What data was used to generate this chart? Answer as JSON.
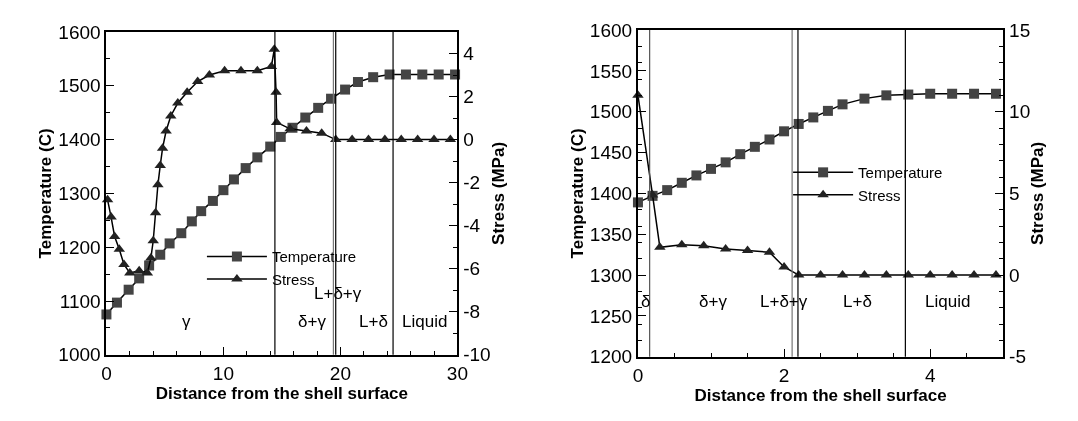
{
  "chart_data": [
    {
      "type": "line",
      "xlabel": "Distance from the shell surface",
      "ylabel": "Temperature (C)",
      "y2label": "Stress (MPa)",
      "xlim": [
        0,
        30
      ],
      "xticks": [
        0,
        10,
        20,
        30
      ],
      "ylim": [
        1000,
        1600
      ],
      "yticks": [
        1000,
        1100,
        1200,
        1300,
        1400,
        1500,
        1600
      ],
      "y2lim": [
        -10,
        5
      ],
      "y2ticks": [
        -10,
        -8,
        -6,
        -4,
        -2,
        0,
        2,
        4
      ],
      "grid": false,
      "legend": "bottom",
      "line_style": "solid",
      "series": [
        {
          "name": "Temperature",
          "color": "#444444",
          "marker": "square",
          "x": [
            0,
            0.9,
            1.9,
            2.8,
            3.65,
            4.6,
            5.4,
            6.4,
            7.3,
            8.1,
            9.1,
            10.0,
            10.9,
            11.9,
            12.9,
            14.0,
            14.9,
            15.9,
            17.0,
            18.1,
            19.2,
            20.4,
            21.5,
            22.8,
            24.2,
            25.6,
            27.0,
            28.4,
            29.8
          ],
          "values": [
            1075,
            1097,
            1121,
            1142,
            1166,
            1186,
            1207,
            1226,
            1248,
            1267,
            1286,
            1306,
            1326,
            1347,
            1367,
            1387,
            1405,
            1422,
            1441,
            1459,
            1476,
            1493,
            1507,
            1516,
            1521,
            1521,
            1521,
            1521,
            1521
          ]
        },
        {
          "name": "Stress",
          "color": "#222222",
          "marker": "triangle",
          "axis": "y2",
          "x": [
            0.1,
            0.4,
            0.7,
            1.1,
            1.5,
            2.0,
            2.8,
            3.5,
            3.8,
            4.0,
            4.2,
            4.4,
            4.6,
            4.8,
            5.1,
            5.5,
            6.1,
            6.9,
            7.8,
            8.8,
            10.1,
            11.5,
            12.9,
            14.1,
            14.35,
            14.5,
            14.55,
            15.7,
            17.1,
            18.4,
            19.6,
            21.0,
            22.4,
            23.8,
            25.2,
            26.6,
            28.0,
            29.4
          ],
          "values": [
            -2.8,
            -3.6,
            -4.5,
            -5.1,
            -5.8,
            -6.2,
            -6.1,
            -6.2,
            -5.5,
            -4.7,
            -3.4,
            -2.1,
            -1.2,
            -0.4,
            0.4,
            1.1,
            1.7,
            2.2,
            2.7,
            3.0,
            3.2,
            3.2,
            3.2,
            3.4,
            4.2,
            2.2,
            0.8,
            0.5,
            0.4,
            0.3,
            0,
            0,
            0,
            0,
            0,
            0,
            0,
            0
          ]
        }
      ],
      "ref_lines": [
        {
          "axis": "x",
          "value": 14.4,
          "color": "#000000"
        },
        {
          "axis": "x",
          "value": 19.4,
          "color": "#777777"
        },
        {
          "axis": "x",
          "value": 19.6,
          "color": "#000000"
        },
        {
          "axis": "x",
          "value": 24.5,
          "color": "#000000"
        }
      ],
      "annotations": [
        "γ",
        "δ+γ",
        "L+δ+γ",
        "L+δ",
        "Liquid"
      ]
    },
    {
      "type": "line",
      "xlabel": "Distance from the shell surface",
      "ylabel": "Temperature (C)",
      "y2label": "Stress (MPa)",
      "xlim": [
        0,
        5
      ],
      "xticks": [
        0,
        2,
        4
      ],
      "ylim": [
        1200,
        1600
      ],
      "yticks": [
        1200,
        1250,
        1300,
        1350,
        1400,
        1450,
        1500,
        1550,
        1600
      ],
      "y2lim": [
        -5,
        15
      ],
      "y2ticks": [
        -5,
        0,
        5,
        10,
        15
      ],
      "grid": false,
      "legend": "right",
      "line_style": "solid",
      "series": [
        {
          "name": "Temperature",
          "color": "#444444",
          "marker": "square",
          "x": [
            0,
            0.2,
            0.4,
            0.6,
            0.8,
            1.0,
            1.2,
            1.4,
            1.6,
            1.8,
            2.0,
            2.2,
            2.4,
            2.6,
            2.8,
            3.1,
            3.4,
            3.7,
            4.0,
            4.3,
            4.6,
            4.9
          ],
          "values": [
            1389,
            1397,
            1404,
            1413,
            1422,
            1430,
            1438,
            1448,
            1457,
            1466,
            1476,
            1485,
            1493,
            1501,
            1509,
            1516,
            1520,
            1521,
            1522,
            1522,
            1522,
            1522
          ]
        },
        {
          "name": "Stress",
          "color": "#222222",
          "marker": "triangle",
          "axis": "y2",
          "x": [
            0,
            0.2,
            0.3,
            0.6,
            0.9,
            1.2,
            1.5,
            1.8,
            2.0,
            2.2,
            2.5,
            2.8,
            3.1,
            3.4,
            3.7,
            4.0,
            4.3,
            4.6,
            4.9
          ],
          "values": [
            11.0,
            4.9,
            1.7,
            1.85,
            1.8,
            1.6,
            1.5,
            1.4,
            0.5,
            0,
            0,
            0,
            0,
            0,
            0,
            0,
            0,
            0,
            0
          ]
        }
      ],
      "ref_lines": [
        {
          "axis": "x",
          "value": 0.16,
          "color": "#555555"
        },
        {
          "axis": "x",
          "value": 2.11,
          "color": "#777777"
        },
        {
          "axis": "x",
          "value": 2.19,
          "color": "#000000"
        },
        {
          "axis": "x",
          "value": 3.66,
          "color": "#000000"
        }
      ],
      "annotations": [
        "δ",
        "δ+γ",
        "L+δ+γ",
        "L+δ",
        "Liquid"
      ]
    }
  ]
}
